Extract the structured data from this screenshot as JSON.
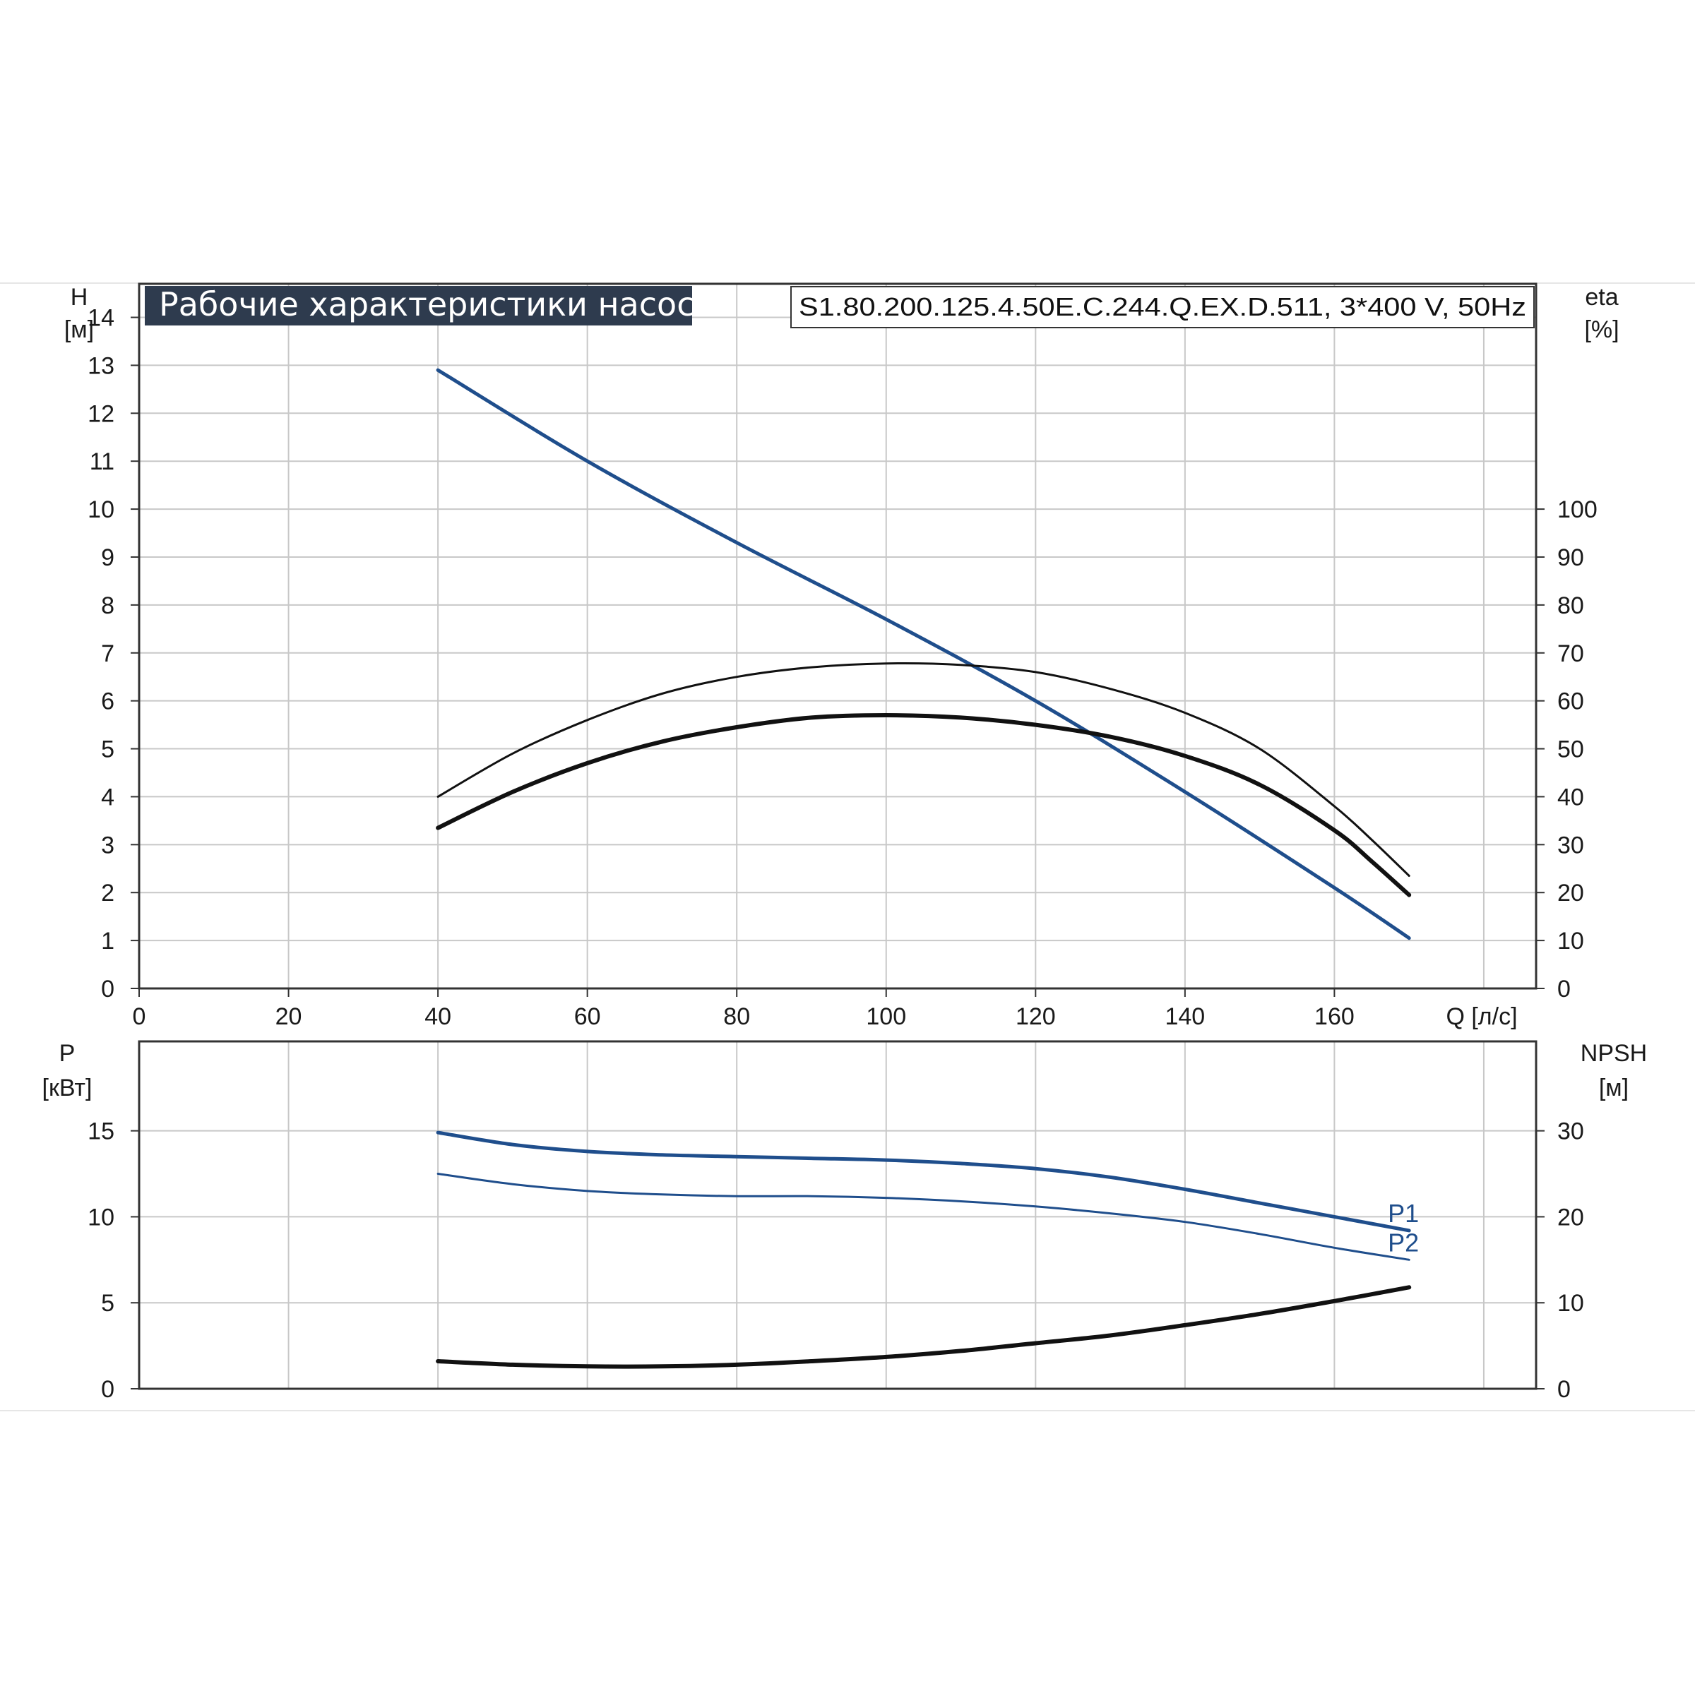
{
  "chart_data": {
    "type": "line",
    "title": "Рабочие характеристики насоса",
    "model": "S1.80.200.125.4.50E.C.244.Q.EX.D.511, 3*400 V, 50Hz",
    "colors": {
      "blue": "#1f4e8c",
      "black": "#111111",
      "grid": "#c8c8c8",
      "title_bg": "#2e3b4e"
    },
    "top": {
      "ylabel_left_line1": "H",
      "ylabel_left_line2": "[м]",
      "ylabel_right_line1": "eta",
      "ylabel_right_line2": "[%]",
      "xlabel": "Q [л/с]",
      "xlim": [
        0,
        187
      ],
      "ylim": [
        0,
        14.7
      ],
      "x_ticks": [
        "0",
        "20",
        "40",
        "60",
        "80",
        "100",
        "120",
        "140",
        "160"
      ],
      "y_ticks": [
        "0",
        "1",
        "2",
        "3",
        "4",
        "5",
        "6",
        "7",
        "8",
        "9",
        "10",
        "11",
        "12",
        "13",
        "14"
      ],
      "y2_ticks": [
        "0",
        "10",
        "20",
        "30",
        "40",
        "50",
        "60",
        "70",
        "80",
        "90",
        "100"
      ],
      "series": [
        {
          "axis": "H",
          "color": "blue",
          "width": 5,
          "x": [
            40,
            60,
            80,
            100,
            120,
            140,
            160,
            170
          ],
          "y": [
            12.9,
            11.0,
            9.3,
            7.7,
            6.0,
            4.1,
            2.1,
            1.05
          ]
        },
        {
          "axis": "eta",
          "color": "black",
          "width": 3,
          "x": [
            40,
            50,
            60,
            70,
            80,
            90,
            100,
            110,
            120,
            130,
            140,
            150,
            160,
            165,
            170
          ],
          "y": [
            40,
            49,
            56,
            61.5,
            65,
            67,
            67.8,
            67.5,
            66,
            62.5,
            57.5,
            50,
            38,
            31,
            23.5
          ]
        },
        {
          "axis": "eta",
          "color": "black",
          "width": 6,
          "x": [
            40,
            50,
            60,
            70,
            80,
            90,
            100,
            110,
            120,
            130,
            140,
            150,
            160,
            165,
            170
          ],
          "y": [
            33.5,
            41,
            47,
            51.5,
            54.5,
            56.5,
            57,
            56.5,
            55,
            52.5,
            48.5,
            42.5,
            33,
            26.5,
            19.5
          ]
        }
      ]
    },
    "bottom": {
      "ylabel_left_line1": "P",
      "ylabel_left_line2": "[кВт]",
      "ylabel_right_line1": "NPSH",
      "ylabel_right_line2": "[м]",
      "xlim": [
        0,
        187
      ],
      "ylim": [
        0,
        20.2
      ],
      "y_ticks": [
        "0",
        "5",
        "10",
        "15"
      ],
      "y2_ticks": [
        "0",
        "10",
        "20",
        "30"
      ],
      "series": [
        {
          "name": "P1",
          "axis": "P",
          "color": "blue",
          "width": 5,
          "x": [
            40,
            50,
            60,
            70,
            80,
            90,
            100,
            110,
            120,
            130,
            140,
            150,
            160,
            170
          ],
          "y": [
            14.9,
            14.2,
            13.8,
            13.6,
            13.5,
            13.4,
            13.3,
            13.1,
            12.8,
            12.3,
            11.6,
            10.8,
            10.0,
            9.2
          ]
        },
        {
          "name": "P2",
          "axis": "P",
          "color": "blue",
          "width": 3,
          "x": [
            40,
            50,
            60,
            70,
            80,
            90,
            100,
            110,
            120,
            130,
            140,
            150,
            160,
            170
          ],
          "y": [
            12.5,
            11.9,
            11.5,
            11.3,
            11.2,
            11.2,
            11.1,
            10.9,
            10.6,
            10.2,
            9.7,
            9.0,
            8.2,
            7.5
          ]
        },
        {
          "axis": "NPSH",
          "color": "black",
          "width": 6,
          "x": [
            40,
            50,
            60,
            70,
            80,
            90,
            100,
            110,
            120,
            130,
            140,
            150,
            160,
            170
          ],
          "y": [
            3.2,
            2.8,
            2.6,
            2.6,
            2.8,
            3.2,
            3.7,
            4.4,
            5.3,
            6.2,
            7.4,
            8.7,
            10.2,
            11.8
          ]
        }
      ]
    }
  }
}
